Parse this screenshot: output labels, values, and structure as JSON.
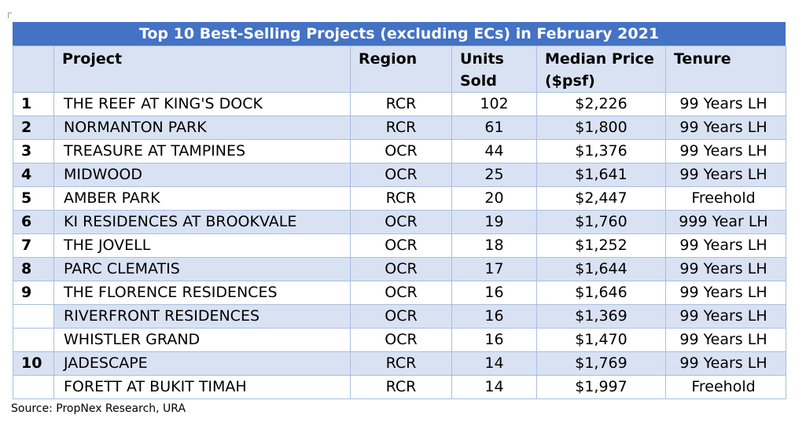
{
  "table": {
    "title": "Top 10 Best-Selling Projects (excluding ECs) in February 2021",
    "headers": {
      "rank": "",
      "project": "Project",
      "region": "Region",
      "units_line1": "Units",
      "units_line2": "Sold",
      "price_line1": "Median Price",
      "price_line2": "($psf)",
      "tenure": "Tenure"
    },
    "rows": [
      {
        "rank": "1",
        "project": "THE REEF AT KING'S DOCK",
        "region": "RCR",
        "units": "102",
        "price": "$2,226",
        "tenure": "99 Years LH"
      },
      {
        "rank": "2",
        "project": "NORMANTON PARK",
        "region": "RCR",
        "units": "61",
        "price": "$1,800",
        "tenure": "99 Years LH"
      },
      {
        "rank": "3",
        "project": "TREASURE AT TAMPINES",
        "region": "OCR",
        "units": "44",
        "price": "$1,376",
        "tenure": "99 Years LH"
      },
      {
        "rank": "4",
        "project": "MIDWOOD",
        "region": "OCR",
        "units": "25",
        "price": "$1,641",
        "tenure": "99 Years LH"
      },
      {
        "rank": "5",
        "project": "AMBER PARK",
        "region": "RCR",
        "units": "20",
        "price": "$2,447",
        "tenure": "Freehold"
      },
      {
        "rank": "6",
        "project": "KI RESIDENCES AT BROOKVALE",
        "region": "OCR",
        "units": "19",
        "price": "$1,760",
        "tenure": "999 Year LH"
      },
      {
        "rank": "7",
        "project": "THE JOVELL",
        "region": "OCR",
        "units": "18",
        "price": "$1,252",
        "tenure": "99 Years LH"
      },
      {
        "rank": "8",
        "project": "PARC CLEMATIS",
        "region": "OCR",
        "units": "17",
        "price": "$1,644",
        "tenure": "99 Years LH"
      },
      {
        "rank": "9",
        "project": "THE FLORENCE RESIDENCES",
        "region": "OCR",
        "units": "16",
        "price": "$1,646",
        "tenure": "99 Years LH"
      },
      {
        "rank": "",
        "project": "RIVERFRONT RESIDENCES",
        "region": "OCR",
        "units": "16",
        "price": "$1,369",
        "tenure": "99 Years LH"
      },
      {
        "rank": "",
        "project": "WHISTLER GRAND",
        "region": "OCR",
        "units": "16",
        "price": "$1,470",
        "tenure": "99 Years LH"
      },
      {
        "rank": "10",
        "project": "JADESCAPE",
        "region": "RCR",
        "units": "14",
        "price": "$1,769",
        "tenure": "99 Years LH"
      },
      {
        "rank": "",
        "project": "FORETT AT BUKIT TIMAH",
        "region": "RCR",
        "units": "14",
        "price": "$1,997",
        "tenure": "Freehold"
      }
    ]
  },
  "source": "Source: PropNex Research, URA",
  "colors": {
    "title_bg": "#4472c4",
    "shaded_row": "#d9e2f3",
    "border": "#a9bee0"
  }
}
